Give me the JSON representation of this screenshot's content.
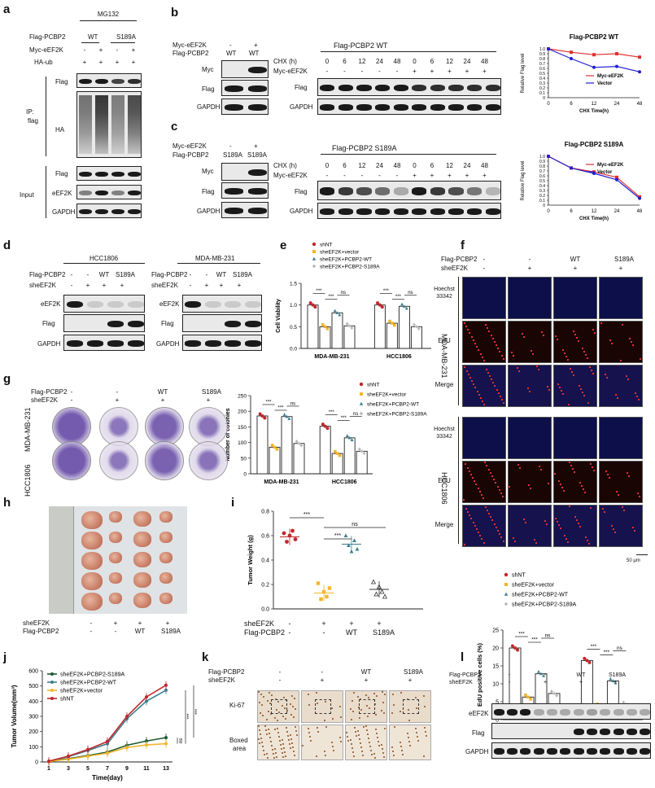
{
  "panel_letters": [
    "a",
    "b",
    "c",
    "d",
    "e",
    "f",
    "g",
    "h",
    "i",
    "j",
    "k",
    "l"
  ],
  "a": {
    "top": "MG132",
    "rows": [
      {
        "label": "Flag-PCBP2",
        "vals": [
          "WT",
          "S189A"
        ]
      },
      {
        "label": "Myc-eEF2K",
        "vals": [
          "-",
          "+",
          "-",
          "+"
        ]
      },
      {
        "label": "HA-ub",
        "vals": [
          "+",
          "+",
          "+",
          "+"
        ]
      }
    ],
    "ip": "IP:\nflag",
    "ip1": "IP:",
    "ip2": "flag",
    "ip_blots": [
      "Flag",
      "HA"
    ],
    "input": "Input",
    "input_blots": [
      "Flag",
      "eEF2K",
      "GAPDH"
    ]
  },
  "b": {
    "left_rows": [
      {
        "label": "Myc-eEF2K",
        "vals": [
          "-",
          "+"
        ]
      },
      {
        "label": "Flag-PCBP2",
        "vals": [
          "WT",
          "WT"
        ]
      }
    ],
    "left_blots": [
      "Myc",
      "Flag",
      "GAPDH"
    ],
    "title": "Flag-PCBP2 WT",
    "chx_label": "CHX (h)",
    "chx": [
      "0",
      "6",
      "12",
      "24",
      "48",
      "0",
      "6",
      "12",
      "24",
      "48"
    ],
    "myc_label": "Myc-eEF2K",
    "myc": [
      "-",
      "-",
      "-",
      "-",
      "-",
      "+",
      "+",
      "+",
      "+",
      "+"
    ],
    "right_blots": [
      "Flag",
      "GAPDH"
    ]
  },
  "c": {
    "left_rows": [
      {
        "label": "Myc-eEF2K",
        "vals": [
          "-",
          "+"
        ]
      },
      {
        "label": "Flag-PCBP2",
        "vals": [
          "S189A",
          "S189A"
        ]
      }
    ],
    "left_blots": [
      "Myc",
      "Flag",
      "GAPDH"
    ],
    "title": "Flag-PCBP2 S189A",
    "chx_label": "CHX (h)",
    "chx": [
      "0",
      "6",
      "12",
      "24",
      "48",
      "0",
      "6",
      "12",
      "24",
      "48"
    ],
    "myc_label": "Myc-eEF2K",
    "myc": [
      "-",
      "-",
      "-",
      "-",
      "-",
      "+",
      "+",
      "+",
      "+",
      "+"
    ],
    "right_blots": [
      "Flag",
      "GAPDH"
    ]
  },
  "d": {
    "lines": [
      "HCC1806",
      "MDA-MB-231"
    ],
    "rows": [
      {
        "label": "Flag-PCBP2",
        "vals": [
          "-",
          "-",
          "WT",
          "S189A"
        ]
      },
      {
        "label": "sheEF2K",
        "vals": [
          "-",
          "+",
          "+",
          "+"
        ]
      }
    ],
    "blots": [
      "eEF2K",
      "Flag",
      "GAPDH"
    ]
  },
  "f": {
    "rows": [
      {
        "label": "Flag-PCBP2",
        "vals": [
          "-",
          "-",
          "WT",
          "S189A"
        ]
      },
      {
        "label": "sheEF2K",
        "vals": [
          "-",
          "+",
          "+",
          "+"
        ]
      }
    ],
    "lines": [
      "MDA-MB-231",
      "HCC1806"
    ],
    "rowlabels": [
      "Hoechst\n33342",
      "EdU",
      "Merge"
    ],
    "hoechst1": "Hoechst",
    "hoechst2": "33342",
    "edu": "EdU",
    "merge": "Merge",
    "scale": "50 μm"
  },
  "g": {
    "rows": [
      {
        "label": "Flag-PCBP2",
        "vals": [
          "-",
          "-",
          "WT",
          "S189A"
        ]
      },
      {
        "label": "sheEF2K",
        "vals": [
          "-",
          "+",
          "+",
          "+"
        ]
      }
    ],
    "lines": [
      "MDA-MB-231",
      "HCC1806"
    ]
  },
  "h": {
    "rows": [
      {
        "label": "sheEF2K",
        "vals": [
          "-",
          "+",
          "+",
          "+"
        ]
      },
      {
        "label": "Flag-PCBP2",
        "vals": [
          "-",
          "-",
          "WT",
          "S189A"
        ]
      }
    ]
  },
  "i": {
    "rows": [
      {
        "label": "sheEF2K",
        "vals": [
          "-",
          "+",
          "+",
          "+"
        ]
      },
      {
        "label": "Flag-PCBP2",
        "vals": [
          "-",
          "-",
          "WT",
          "S189A"
        ]
      }
    ]
  },
  "k": {
    "rows": [
      {
        "label": "Flag-PCBP2",
        "vals": [
          "-",
          "-",
          "WT",
          "S189A"
        ]
      },
      {
        "label": "sheEF2K",
        "vals": [
          "-",
          "+",
          "+",
          "+"
        ]
      }
    ],
    "rowlabels": [
      "Ki-67",
      "Boxed\narea"
    ],
    "ki67": "Ki-67",
    "boxed1": "Boxed",
    "boxed2": "area"
  },
  "l": {
    "rows": [
      {
        "label": "Flag-PCBP2",
        "vals": [
          "-",
          "-",
          "WT",
          "S189A"
        ]
      },
      {
        "label": "sheEF2K",
        "vals": [
          "-",
          "+",
          "+",
          "+"
        ]
      }
    ],
    "blots": [
      "eEF2K",
      "Flag",
      "GAPDH"
    ]
  },
  "colors": {
    "shNT": "#c0282d",
    "vector": "#f2b62b",
    "wt": "#3d7f8f",
    "s189a": "#b9b9b9",
    "wt_line": "#1a1ac8"
  },
  "chart_data": [
    {
      "id": "b-chart",
      "type": "line",
      "title": "Flag-PCBP2 WT",
      "xlabel": "CHX Time(h)",
      "ylabel": "Relative Flag level",
      "x": [
        0,
        6,
        12,
        24,
        48
      ],
      "xticks": [
        "0",
        "6",
        "12",
        "24",
        "48"
      ],
      "ylim": [
        0,
        1.0
      ],
      "yticks": [
        "0",
        "0.1",
        "0.2",
        "0.3",
        "0.4",
        "0.5",
        "0.6",
        "0.7",
        "0.8",
        "0.9",
        "1.0"
      ],
      "series": [
        {
          "name": "Myc-eEF2K",
          "values": [
            1.0,
            0.93,
            0.88,
            0.9,
            0.83
          ]
        },
        {
          "name": "Vector",
          "values": [
            1.0,
            0.8,
            0.62,
            0.64,
            0.53
          ]
        }
      ]
    },
    {
      "id": "c-chart",
      "type": "line",
      "title": "Flag-PCBP2 S189A",
      "xlabel": "CHX Time(h)",
      "ylabel": "Relative Flag level",
      "x": [
        0,
        6,
        12,
        24,
        48
      ],
      "xticks": [
        "0",
        "6",
        "12",
        "24",
        "48"
      ],
      "ylim": [
        0,
        1.0
      ],
      "yticks": [
        "0",
        "0.1",
        "0.2",
        "0.3",
        "0.4",
        "0.5",
        "0.6",
        "0.7",
        "0.8",
        "0.9",
        "1.0"
      ],
      "series": [
        {
          "name": "Myc-eEF2K",
          "values": [
            1.0,
            0.76,
            0.68,
            0.57,
            0.17
          ]
        },
        {
          "name": "Vector",
          "values": [
            1.0,
            0.76,
            0.65,
            0.52,
            0.14
          ]
        }
      ]
    },
    {
      "id": "e-chart",
      "type": "bar",
      "ylabel": "Cell Viability",
      "ylim": [
        0,
        1.5
      ],
      "yticks": [
        "0.0",
        "0.5",
        "1.0",
        "1.5"
      ],
      "categories": [
        "MDA-MB-231",
        "HCC1806"
      ],
      "legend": [
        "shNT",
        "sheEF2K+vector",
        "sheEF2K+PCBP2-WT",
        "sheEF2K+PCBP2-S189A"
      ],
      "series": [
        {
          "name": "shNT",
          "values": [
            1.0,
            1.0
          ]
        },
        {
          "name": "sheEF2K+vector",
          "values": [
            0.5,
            0.58
          ]
        },
        {
          "name": "sheEF2K+PCBP2-WT",
          "values": [
            0.82,
            0.97
          ]
        },
        {
          "name": "sheEF2K+PCBP2-S189A",
          "values": [
            0.52,
            0.5
          ]
        }
      ],
      "sig": [
        "***",
        "***",
        "ns",
        "***",
        "***",
        "ns"
      ]
    },
    {
      "id": "g-chart",
      "type": "bar",
      "ylabel": "Number of colonies",
      "ylim": [
        0,
        250
      ],
      "yticks": [
        "0",
        "50",
        "100",
        "150",
        "200",
        "250"
      ],
      "categories": [
        "MDA-MB-231",
        "HCC1806"
      ],
      "legend": [
        "shNT",
        "sheEF2K+vector",
        "sheEF2K+PCBP2-WT",
        "sheEF2K+PCBP2-S189A"
      ],
      "series": [
        {
          "name": "shNT",
          "values": [
            185,
            152
          ]
        },
        {
          "name": "sheEF2K+vector",
          "values": [
            85,
            65
          ]
        },
        {
          "name": "sheEF2K+PCBP2-WT",
          "values": [
            183,
            115
          ]
        },
        {
          "name": "sheEF2K+PCBP2-S189A",
          "values": [
            97,
            72
          ]
        }
      ],
      "sig": [
        "***",
        "***",
        "ns",
        "***",
        "***",
        "ns"
      ]
    },
    {
      "id": "f-chart",
      "type": "bar",
      "ylabel": "EdU positive cells (%)",
      "ylim": [
        0,
        25
      ],
      "yticks": [
        "0",
        "5",
        "10",
        "15",
        "20",
        "25"
      ],
      "categories": [
        "MDA-MB-231",
        "HCC1806"
      ],
      "legend": [
        "shNT",
        "sheEF2K+vector",
        "sheEF2K+PCBP2-WT",
        "sheEF2K+PCBP2-S189A"
      ],
      "series": [
        {
          "name": "shNT",
          "values": [
            20,
            16.5
          ]
        },
        {
          "name": "sheEF2K+vector",
          "values": [
            6.3,
            3.8
          ]
        },
        {
          "name": "sheEF2K+PCBP2-WT",
          "values": [
            12.8,
            10.8
          ]
        },
        {
          "name": "sheEF2K+PCBP2-S189A",
          "values": [
            7.3,
            4.3
          ]
        }
      ],
      "sig": [
        "***",
        "***",
        "ns",
        "***",
        "***",
        "ns"
      ]
    },
    {
      "id": "i-chart",
      "type": "scatter",
      "ylabel": "Tumor Weight (g)",
      "ylim": [
        0,
        0.8
      ],
      "yticks": [
        "0.0",
        "0.2",
        "0.4",
        "0.6",
        "0.8"
      ],
      "groups": [
        {
          "name": "shNT",
          "mean": 0.59,
          "points": [
            0.62,
            0.55,
            0.6,
            0.64,
            0.57
          ]
        },
        {
          "name": "sheEF2K+vector",
          "mean": 0.13,
          "points": [
            0.21,
            0.08,
            0.14,
            0.1,
            0.17
          ]
        },
        {
          "name": "sheEF2K+PCBP2-WT",
          "mean": 0.53,
          "points": [
            0.6,
            0.52,
            0.47,
            0.56,
            0.49
          ]
        },
        {
          "name": "sheEF2K+PCBP2-S189A",
          "mean": 0.16,
          "points": [
            0.22,
            0.12,
            0.18,
            0.14,
            0.1
          ]
        }
      ],
      "sig": [
        "***",
        "***",
        "ns"
      ]
    },
    {
      "id": "j-chart",
      "type": "line",
      "xlabel": "Time(day)",
      "ylabel": "Tumor Volume(mm³)",
      "ylim": [
        0,
        600
      ],
      "yticks": [
        "0",
        "100",
        "200",
        "300",
        "400",
        "500",
        "600"
      ],
      "x": [
        1,
        3,
        5,
        7,
        9,
        11,
        13
      ],
      "xticks": [
        "1",
        "3",
        "5",
        "7",
        "9",
        "11",
        "13"
      ],
      "series": [
        {
          "name": "sheEF2K+PCBP2-S189A",
          "values": [
            3,
            22,
            42,
            65,
            110,
            138,
            160
          ]
        },
        {
          "name": "sheEF2K+PCBP2-WT",
          "values": [
            5,
            35,
            75,
            120,
            285,
            400,
            472
          ]
        },
        {
          "name": "sheEF2K+vector",
          "values": [
            3,
            18,
            38,
            58,
            95,
            112,
            120
          ]
        },
        {
          "name": "shNT",
          "values": [
            5,
            38,
            82,
            135,
            300,
            428,
            505
          ]
        }
      ],
      "sig": [
        "***",
        "ns",
        "***"
      ]
    }
  ]
}
